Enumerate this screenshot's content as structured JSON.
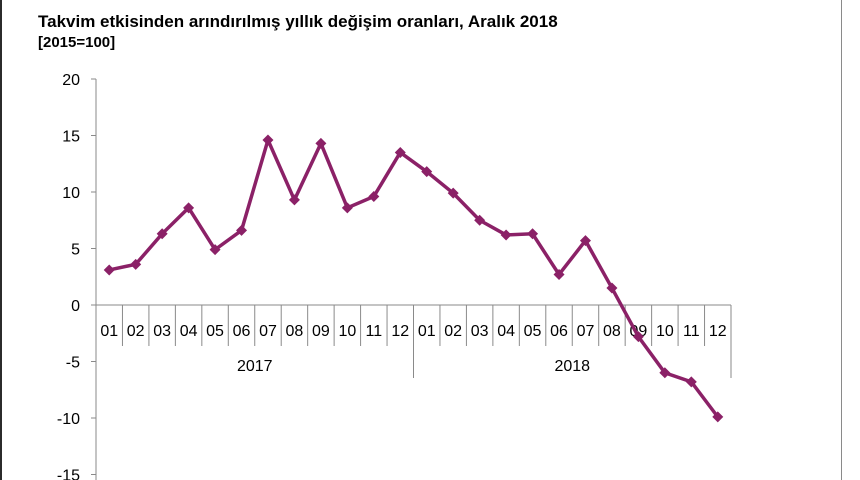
{
  "title": "Takvim etkisinden arındırılmış yıllık değişim oranları, Aralık 2018",
  "subtitle": "[2015=100]",
  "chart_data": {
    "type": "line",
    "title": "Takvim etkisinden arındırılmış yıllık değişim oranları, Aralık 2018",
    "subtitle": "[2015=100]",
    "categories": [
      "01",
      "02",
      "03",
      "04",
      "05",
      "06",
      "07",
      "08",
      "09",
      "10",
      "11",
      "12",
      "01",
      "02",
      "03",
      "04",
      "05",
      "06",
      "07",
      "08",
      "09",
      "10",
      "11",
      "12"
    ],
    "groups": [
      {
        "label": "2017",
        "span": 12
      },
      {
        "label": "2018",
        "span": 12
      }
    ],
    "series": [
      {
        "color": "#8B2167",
        "marker": "diamond",
        "values": [
          3.1,
          3.6,
          6.3,
          8.6,
          4.9,
          6.6,
          14.6,
          9.3,
          14.3,
          8.6,
          9.6,
          13.5,
          11.8,
          9.9,
          7.5,
          6.2,
          6.3,
          2.7,
          5.7,
          1.5,
          -2.8,
          -6.0,
          -6.8,
          -9.9
        ]
      }
    ],
    "yticks": [
      20,
      15,
      10,
      5,
      0,
      -5,
      -10,
      -15
    ],
    "ylim": [
      -15,
      20
    ],
    "grid": false,
    "legend": "none"
  }
}
